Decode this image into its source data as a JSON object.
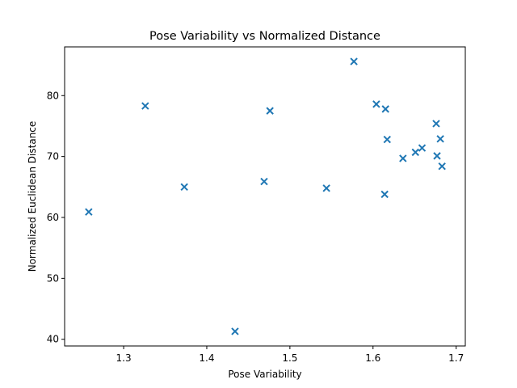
{
  "chart_data": {
    "type": "scatter",
    "title": "Pose Variability vs Normalized Distance",
    "xlabel": "Pose Variability",
    "ylabel": "Normalized Euclidean Distance",
    "xlim": [
      1.229,
      1.711
    ],
    "ylim": [
      38.9,
      88.0
    ],
    "xticks": [
      1.3,
      1.4,
      1.5,
      1.6,
      1.7
    ],
    "xtick_labels": [
      "1.3",
      "1.4",
      "1.5",
      "1.6",
      "1.7"
    ],
    "yticks": [
      40,
      50,
      60,
      70,
      80
    ],
    "ytick_labels": [
      "40",
      "50",
      "60",
      "70",
      "80"
    ],
    "grid": false,
    "marker": "x",
    "color": "#1f77b4",
    "series": [
      {
        "x": [
          1.258,
          1.326,
          1.373,
          1.434,
          1.469,
          1.476,
          1.544,
          1.577,
          1.604,
          1.614,
          1.615,
          1.617,
          1.636,
          1.651,
          1.659,
          1.676,
          1.677,
          1.681,
          1.683
        ],
        "y": [
          60.9,
          78.3,
          65.0,
          41.3,
          65.9,
          77.5,
          64.8,
          85.6,
          78.6,
          63.8,
          77.8,
          72.8,
          69.7,
          70.7,
          71.4,
          75.4,
          70.1,
          72.9,
          68.4
        ]
      }
    ]
  }
}
